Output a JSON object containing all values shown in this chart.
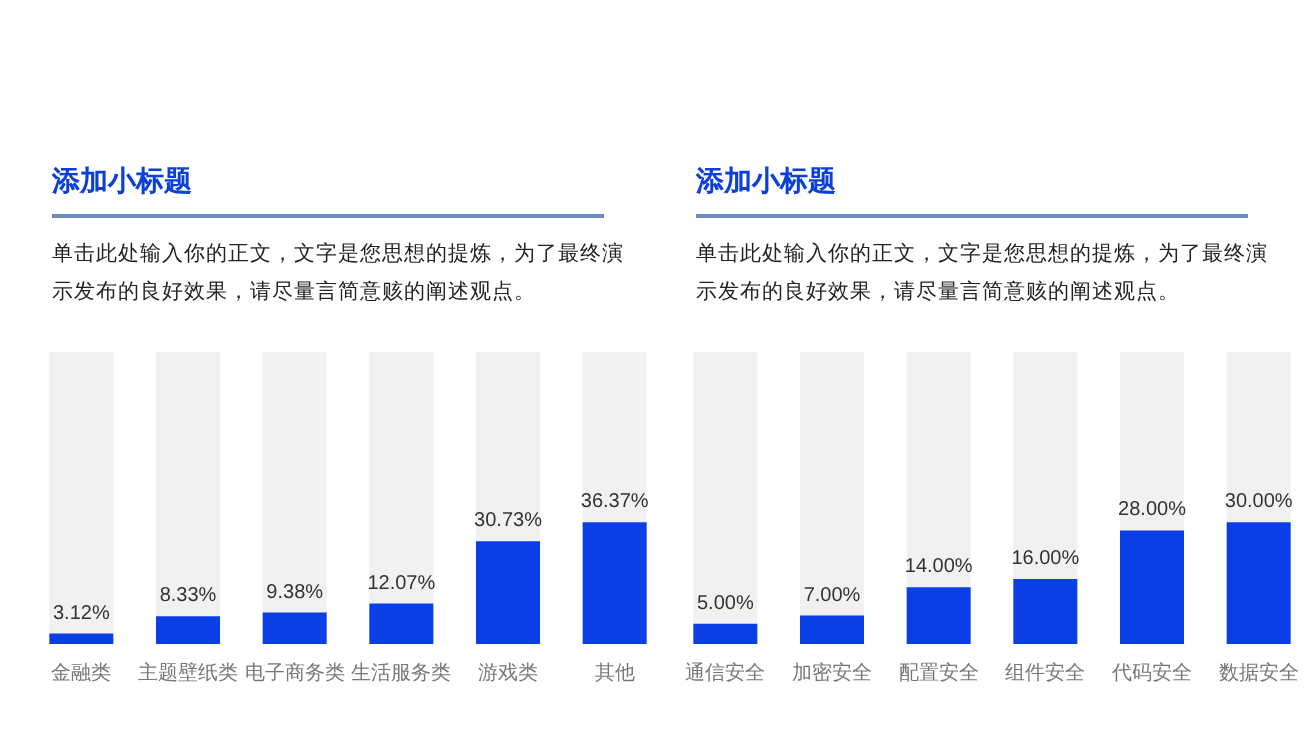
{
  "chart_data": [
    {
      "type": "bar",
      "title": "添加小标题",
      "subtitle": "单击此处输入你的正文，文字是您思想的提炼，为了最终演示发布的良好效果，请尽量言简意赅的阐述观点。",
      "categories": [
        "金融类",
        "主题壁纸类",
        "电子商务类",
        "生活服务类",
        "游戏类",
        "其他"
      ],
      "values": [
        3.12,
        8.33,
        9.38,
        12.07,
        30.73,
        36.37
      ],
      "value_labels": [
        "3.12%",
        "8.33%",
        "9.38%",
        "12.07%",
        "30.73%",
        "36.37%"
      ],
      "color": "#0b3fe6"
    },
    {
      "type": "bar",
      "title": "添加小标题",
      "subtitle": "单击此处输入你的正文，文字是您思想的提炼，为了最终演示发布的良好效果，请尽量言简意赅的阐述观点。",
      "categories": [
        "通信安全",
        "加密安全",
        "配置安全",
        "组件安全",
        "代码安全",
        "数据安全"
      ],
      "values": [
        5,
        7,
        14,
        16,
        28,
        30
      ],
      "value_labels": [
        "5.00%",
        "7.00%",
        "14.00%",
        "16.00%",
        "28.00%",
        "30.00%"
      ],
      "color": "#0b3fe6"
    }
  ]
}
